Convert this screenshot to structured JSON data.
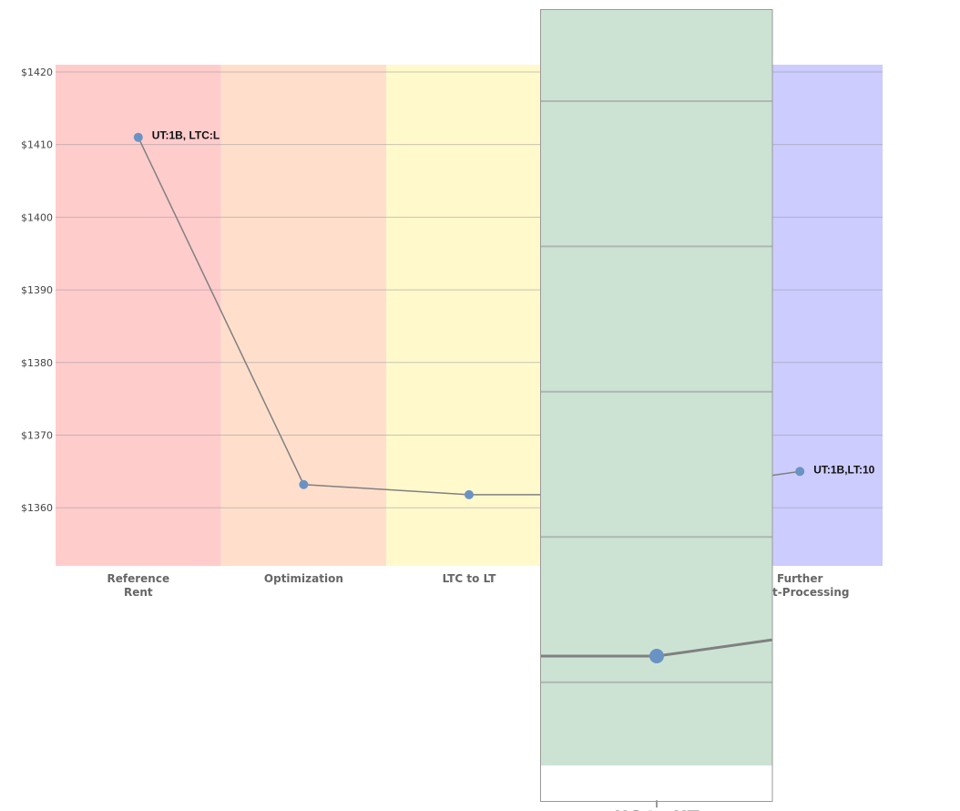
{
  "chart_data": {
    "type": "line",
    "categories": [
      "Reference\nRent",
      "Optimization",
      "LTC to LT",
      "UC to UT",
      "Further\nPost-Processing"
    ],
    "values": [
      1411,
      1363.2,
      1361.8,
      1361.8,
      1365
    ],
    "point_labels": [
      "UT:1B, LTC:L",
      "",
      "",
      "",
      "UT:1B,LT:10"
    ],
    "band_colors": [
      "#ffcccc",
      "#ffdfcc",
      "#fff9cc",
      "#cce3d4",
      "#ccccff"
    ],
    "ylim": [
      1352,
      1421
    ],
    "yticks": [
      1360,
      1370,
      1380,
      1390,
      1400,
      1410,
      1420
    ],
    "ytick_prefix": "$",
    "xlabel": "",
    "ylabel": "",
    "grid": true,
    "line_color": "#808080",
    "marker_color": "#6a93c4"
  },
  "magnifier": {
    "focus_category": "UC to UT"
  }
}
